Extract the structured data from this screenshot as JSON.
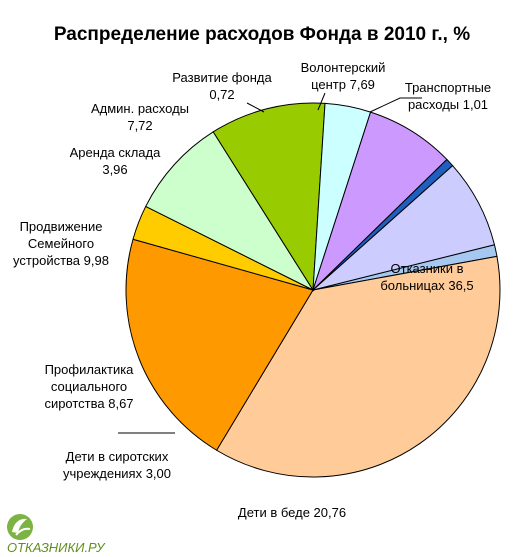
{
  "chart_data": {
    "type": "pie",
    "title": "Распределение расходов Фонда в 2010 г., %",
    "slices": [
      {
        "label": [
          "Транспортные",
          "расходы  1,01"
        ],
        "value": 1.01,
        "color": "#a6c8f0"
      },
      {
        "label": [
          "Отказники в",
          "больницах  36,5"
        ],
        "value": 36.5,
        "color": "#ffcc99"
      },
      {
        "label": [
          "Дети в беде  20,76"
        ],
        "value": 20.76,
        "color": "#ff9900"
      },
      {
        "label": [
          "Дети в сиротских",
          "учреждениях  3,00"
        ],
        "value": 3.0,
        "color": "#ffcc00"
      },
      {
        "label": [
          "Профилактика",
          "социального",
          "сиротства  8,67"
        ],
        "value": 8.67,
        "color": "#ccffcc"
      },
      {
        "label": [
          "Продвижение",
          "Семейного",
          "устройства  9,98"
        ],
        "value": 9.98,
        "color": "#99cc00"
      },
      {
        "label": [
          "Аренда склада",
          "3,96"
        ],
        "value": 3.96,
        "color": "#ccffff"
      },
      {
        "label": [
          "Админ. расходы",
          "7,72"
        ],
        "value": 7.72,
        "color": "#cc99ff"
      },
      {
        "label": [
          "Развитие фонда",
          "0,72"
        ],
        "value": 0.72,
        "color": "#1f5fbf"
      },
      {
        "label": [
          "Волонтерский",
          "центр  7,69"
        ],
        "value": 7.69,
        "color": "#ccccff"
      }
    ]
  },
  "logo": {
    "text": "ОТКАЗНИКИ.РУ",
    "icon": "hands-logo-icon",
    "color": "#5f8f1e"
  }
}
